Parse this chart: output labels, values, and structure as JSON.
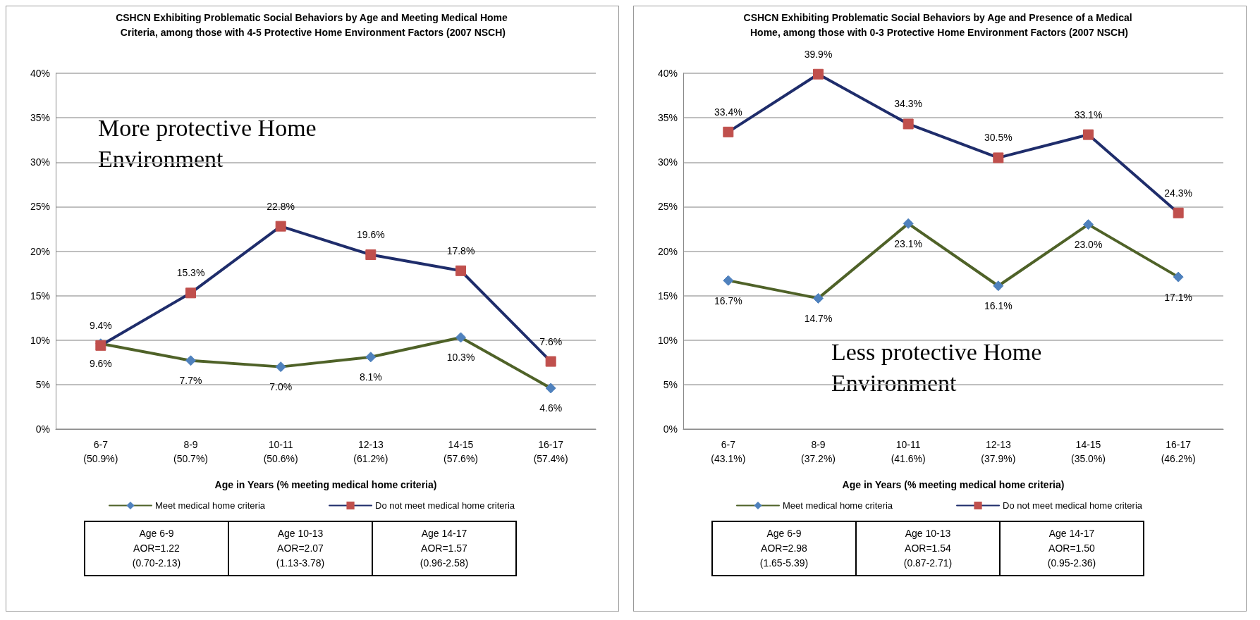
{
  "chart_data": [
    {
      "type": "line",
      "title": "CSHCN Exhibiting Problematic Social Behaviors by Age and Meeting Medical Home Criteria, among those with 4-5 Protective Home Environment Factors (2007 NSCH)",
      "xlabel": "Age in Years (% meeting medical home criteria)",
      "categories": [
        "6-7\n(50.9%)",
        "8-9\n(50.7%)",
        "10-11\n(50.6%)",
        "12-13\n(61.2%)",
        "14-15\n(57.6%)",
        "16-17\n(57.4%)"
      ],
      "series": [
        {
          "name": "Meet medical home criteria",
          "color": "#4f6228",
          "marker": "diamond",
          "values": [
            9.6,
            7.7,
            7.0,
            8.1,
            10.3,
            4.6
          ],
          "value_labels": [
            "9.6%",
            "7.7%",
            "7.0%",
            "8.1%",
            "10.3%",
            "4.6%"
          ]
        },
        {
          "name": "Do not meet medical home criteria",
          "color": "#1f2d6b",
          "marker": "square",
          "values": [
            9.4,
            15.3,
            22.8,
            19.6,
            17.8,
            7.6
          ],
          "value_labels": [
            "9.4%",
            "15.3%",
            "22.8%",
            "19.6%",
            "17.8%",
            "7.6%"
          ]
        }
      ],
      "ylim": [
        0,
        40
      ],
      "yticks": [
        {
          "value": 0,
          "label": "0%"
        },
        {
          "value": 5,
          "label": "5%"
        },
        {
          "value": 10,
          "label": "10%"
        },
        {
          "value": 15,
          "label": "15%"
        },
        {
          "value": 20,
          "label": "20%"
        },
        {
          "value": 25,
          "label": "25%"
        },
        {
          "value": 30,
          "label": "30%"
        },
        {
          "value": 35,
          "label": "35%"
        },
        {
          "value": 40,
          "label": "40%"
        }
      ],
      "grid": "y",
      "legend": "bottom",
      "annotations": [
        "More protective Home Environment",
        "Age 6-9\nAOR=1.22\n(0.70-2.13)",
        "Age 10-13\nAOR=2.07\n(1.13-3.78)",
        "Age 14-17\nAOR=1.57\n(0.96-2.58)"
      ]
    },
    {
      "type": "line",
      "title": "CSHCN Exhibiting Problematic Social Behaviors by Age and Presence of a Medical Home, among those with 0-3 Protective Home Environment Factors (2007 NSCH)",
      "xlabel": "Age in Years (% meeting medical home criteria)",
      "categories": [
        "6-7\n(43.1%)",
        "8-9\n(37.2%)",
        "10-11\n(41.6%)",
        "12-13\n(37.9%)",
        "14-15\n(35.0%)",
        "16-17\n(46.2%)"
      ],
      "series": [
        {
          "name": "Meet medical home criteria",
          "color": "#4f6228",
          "marker": "diamond",
          "values": [
            16.7,
            14.7,
            23.1,
            16.1,
            23.0,
            17.1
          ],
          "value_labels": [
            "16.7%",
            "14.7%",
            "23.1%",
            "16.1%",
            "23.0%",
            "17.1%"
          ]
        },
        {
          "name": "Do not meet medical home criteria",
          "color": "#1f2d6b",
          "marker": "square",
          "values": [
            33.4,
            39.9,
            34.3,
            30.5,
            33.1,
            24.3
          ],
          "value_labels": [
            "33.4%",
            "39.9%",
            "34.3%",
            "30.5%",
            "33.1%",
            "24.3%"
          ]
        }
      ],
      "ylim": [
        0,
        40
      ],
      "yticks": [
        {
          "value": 0,
          "label": "0%"
        },
        {
          "value": 5,
          "label": "5%"
        },
        {
          "value": 10,
          "label": "10%"
        },
        {
          "value": 15,
          "label": "15%"
        },
        {
          "value": 20,
          "label": "20%"
        },
        {
          "value": 25,
          "label": "25%"
        },
        {
          "value": 30,
          "label": "30%"
        },
        {
          "value": 35,
          "label": "35%"
        },
        {
          "value": 40,
          "label": "40%"
        }
      ],
      "grid": "y",
      "legend": "bottom",
      "annotations": [
        "Less protective Home Environment",
        "Age 6-9\nAOR=2.98\n(1.65-5.39)",
        "Age 10-13\nAOR=1.54\n(0.87-2.71)",
        "Age 14-17\nAOR=1.50\n(0.95-2.36)"
      ]
    }
  ]
}
